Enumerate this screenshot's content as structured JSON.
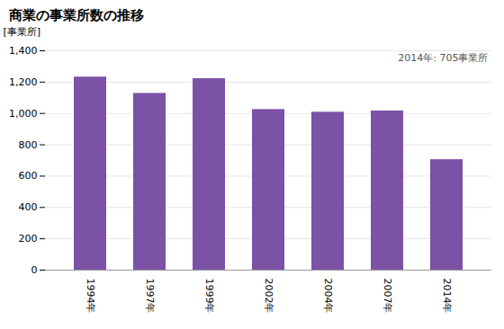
{
  "chart_data": {
    "type": "bar",
    "title": "商業の事業所数の推移",
    "ylabel": "[事業所]",
    "annotation": "2014年: 705事業所",
    "categories": [
      "1994年",
      "1997年",
      "1999年",
      "2002年",
      "2004年",
      "2007年",
      "2014年"
    ],
    "values": [
      1232,
      1128,
      1222,
      1025,
      1008,
      1016,
      705
    ],
    "color": "#7B52A6",
    "ylim": [
      0,
      1400
    ],
    "yticks": [
      0,
      200,
      400,
      600,
      800,
      {
        "value": 1000,
        "label": "1,000"
      },
      {
        "value": 1200,
        "label": "1,200"
      },
      {
        "value": 1400,
        "label": "1,400"
      }
    ],
    "grid": true
  }
}
